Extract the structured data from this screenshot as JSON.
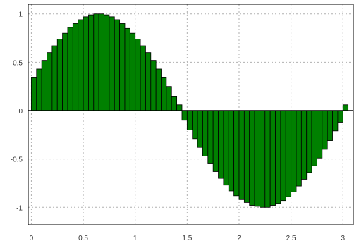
{
  "chart_data": {
    "type": "bar",
    "title": "",
    "xlabel": "",
    "ylabel": "",
    "xlim": [
      -0.03,
      3.1
    ],
    "ylim": [
      -1.18,
      1.1
    ],
    "x_ticks": [
      0,
      0.5,
      1,
      1.5,
      2,
      2.5,
      3
    ],
    "x_tick_labels": [
      "0",
      "0.5",
      "1",
      "1.5",
      "2",
      "2.5",
      "3"
    ],
    "y_ticks": [
      -1,
      -0.5,
      0,
      0.5,
      1
    ],
    "y_tick_labels": [
      "-1",
      "-0.5",
      "0",
      "0.5",
      "1"
    ],
    "grid": true,
    "bar_width": 0.05,
    "bar_color": "#008000",
    "bar_edge_color": "#000000",
    "x_start": 0,
    "x_step": 0.05,
    "values": [
      0.34,
      0.43,
      0.52,
      0.6,
      0.67,
      0.74,
      0.8,
      0.86,
      0.9,
      0.94,
      0.97,
      0.99,
      1.0,
      1.0,
      0.99,
      0.97,
      0.94,
      0.9,
      0.85,
      0.8,
      0.74,
      0.67,
      0.6,
      0.52,
      0.43,
      0.34,
      0.25,
      0.15,
      0.06,
      -0.1,
      -0.2,
      -0.29,
      -0.38,
      -0.47,
      -0.55,
      -0.63,
      -0.7,
      -0.77,
      -0.83,
      -0.88,
      -0.92,
      -0.95,
      -0.98,
      -0.99,
      -1.0,
      -1.0,
      -0.98,
      -0.96,
      -0.93,
      -0.89,
      -0.84,
      -0.78,
      -0.71,
      -0.64,
      -0.57,
      -0.49,
      -0.4,
      -0.31,
      -0.21,
      -0.12,
      0.06
    ]
  }
}
